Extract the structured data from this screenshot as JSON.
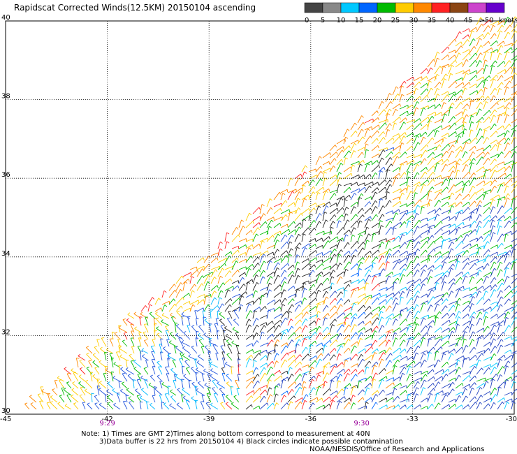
{
  "title": "Rapidscat Corrected Winds(12.5KM) 20150104 ascending",
  "colorbar": {
    "units": "knots",
    "labels": [
      "0",
      "5",
      "10",
      "15",
      "20",
      "25",
      "30",
      "35",
      "40",
      "45",
      ">50"
    ],
    "colors": [
      "#444444",
      "#888888",
      "#00c8ff",
      "#0066ff",
      "#00bb00",
      "#ffcc00",
      "#ff8800",
      "#ff2222",
      "#8b4513",
      "#cc44cc",
      "#6600cc"
    ]
  },
  "map": {
    "lat_ticks": [
      "40",
      "38",
      "36",
      "34",
      "32",
      "30"
    ],
    "lon_ticks": [
      "-45",
      "-42",
      "-39",
      "-36",
      "-33",
      "-30"
    ],
    "times": [
      {
        "lon": "-42",
        "label": "9:29"
      },
      {
        "lon": "-34.5",
        "label": "9:30"
      }
    ]
  },
  "notes": {
    "line1": "Note: 1) Times are GMT 2)Times along bottom correspond to measurement at 40N",
    "line2": "3)Data buffer is 22 hrs from 20150104 4) Black circles indicate possible contamination"
  },
  "credit": "NOAA/NESDIS/Office of Research and Applications"
}
